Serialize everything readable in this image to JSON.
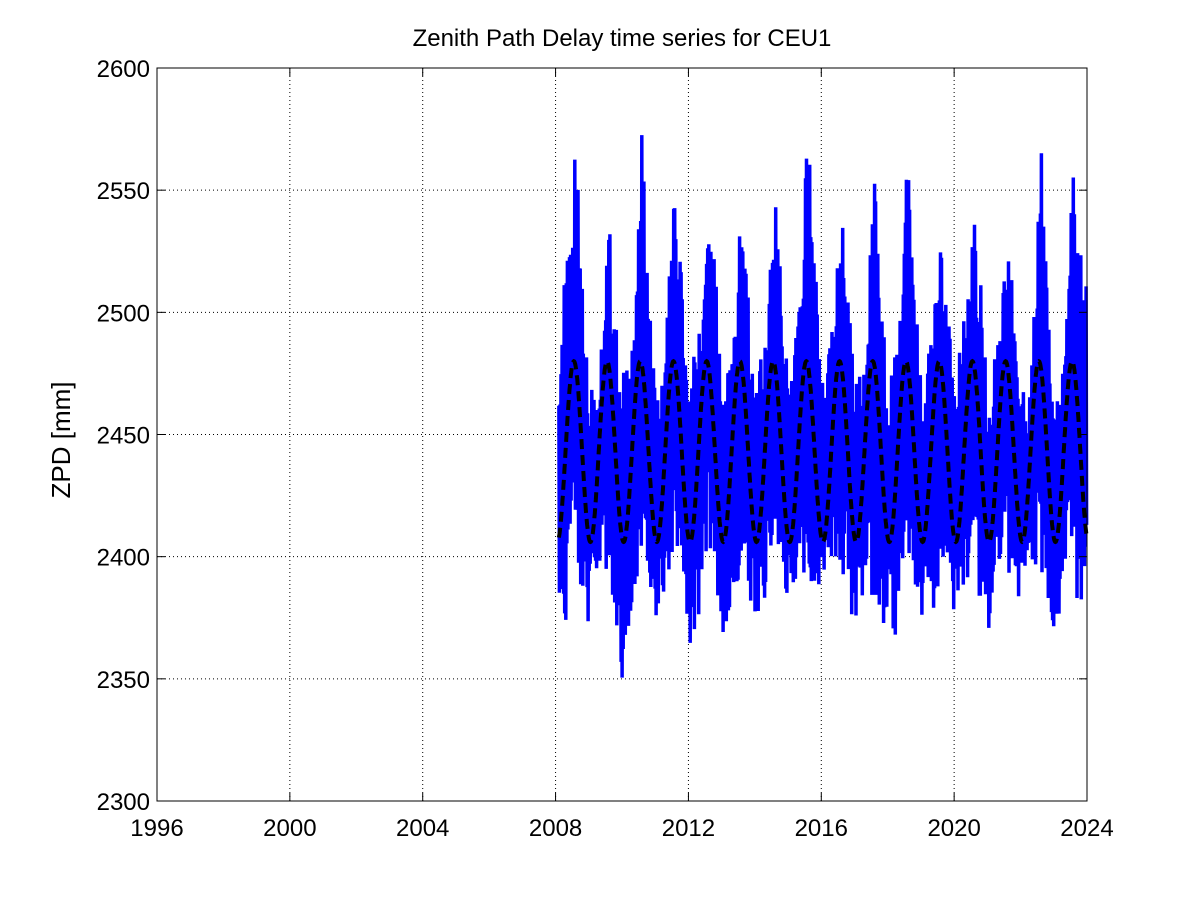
{
  "chart_data": {
    "type": "line",
    "title": "Zenith Path Delay time series for CEU1",
    "xlabel": "",
    "ylabel": "ZPD [mm]",
    "xlim": [
      1996,
      2024
    ],
    "ylim": [
      2300,
      2600
    ],
    "xticks": [
      "1996",
      "2000",
      "2004",
      "2008",
      "2012",
      "2016",
      "2020",
      "2024"
    ],
    "yticks": [
      "2300",
      "2350",
      "2400",
      "2450",
      "2500",
      "2550",
      "2600"
    ],
    "grid": true,
    "series": [
      {
        "kind": "observed",
        "style": "solid",
        "color": "#0000ff",
        "x": [
          2008.0,
          2008.2,
          2008.4,
          2008.6,
          2008.8,
          2009.0,
          2009.2,
          2009.4,
          2009.6,
          2009.8,
          2010.0,
          2010.2,
          2010.4,
          2010.6,
          2010.8,
          2011.0,
          2011.2,
          2011.4,
          2011.6,
          2011.8,
          2012.0,
          2012.2,
          2012.4,
          2012.6,
          2012.8,
          2013.0,
          2013.2,
          2013.4,
          2013.6,
          2013.8,
          2014.0,
          2014.2,
          2014.4,
          2014.6,
          2014.8,
          2015.0,
          2015.2,
          2015.4,
          2015.6,
          2015.8,
          2016.0,
          2016.2,
          2016.4,
          2016.6,
          2016.8,
          2017.0,
          2017.2,
          2017.4,
          2017.6,
          2017.8,
          2018.0,
          2018.2,
          2018.4,
          2018.6,
          2018.8,
          2019.0,
          2019.2,
          2019.4,
          2019.6,
          2019.8,
          2020.0,
          2020.2,
          2020.4,
          2020.6,
          2020.8,
          2021.0,
          2021.2,
          2021.4,
          2021.6,
          2021.8,
          2022.0,
          2022.2,
          2022.4,
          2022.6,
          2022.8,
          2023.0,
          2023.2,
          2023.4,
          2023.6,
          2023.8,
          2024.0
        ],
        "y_min": [
          2420,
          2355,
          2390,
          2405,
          2380,
          2368,
          2375,
          2395,
          2390,
          2375,
          2350,
          2365,
          2385,
          2400,
          2385,
          2370,
          2375,
          2390,
          2395,
          2385,
          2360,
          2370,
          2380,
          2400,
          2390,
          2365,
          2375,
          2385,
          2395,
          2380,
          2370,
          2380,
          2385,
          2405,
          2395,
          2375,
          2390,
          2395,
          2385,
          2380,
          2390,
          2400,
          2395,
          2395,
          2385,
          2370,
          2380,
          2390,
          2380,
          2375,
          2360,
          2365,
          2385,
          2400,
          2390,
          2370,
          2385,
          2375,
          2395,
          2385,
          2375,
          2380,
          2390,
          2395,
          2380,
          2365,
          2385,
          2390,
          2395,
          2380,
          2385,
          2390,
          2380,
          2390,
          2385,
          2365,
          2380,
          2395,
          2385,
          2380,
          2375
        ],
        "y_max": [
          2490,
          2505,
          2530,
          2567,
          2525,
          2470,
          2480,
          2495,
          2541,
          2510,
          2475,
          2480,
          2500,
          2577,
          2515,
          2465,
          2470,
          2510,
          2552,
          2520,
          2470,
          2485,
          2500,
          2565,
          2520,
          2470,
          2480,
          2495,
          2556,
          2510,
          2465,
          2485,
          2510,
          2555,
          2515,
          2470,
          2490,
          2520,
          2583,
          2530,
          2470,
          2480,
          2505,
          2560,
          2520,
          2470,
          2475,
          2505,
          2563,
          2520,
          2470,
          2480,
          2510,
          2568,
          2520,
          2470,
          2480,
          2500,
          2533,
          2505,
          2470,
          2490,
          2505,
          2570,
          2515,
          2465,
          2480,
          2500,
          2535,
          2515,
          2470,
          2470,
          2500,
          2575,
          2510,
          2470,
          2470,
          2500,
          2575,
          2530,
          2508
        ]
      },
      {
        "kind": "model",
        "style": "dashed",
        "color": "#000000",
        "x_start": 2008.1,
        "x_end": 2024.0,
        "period_years": 1,
        "mean": 2443,
        "amplitude": 37,
        "peak_phase": 0.55
      }
    ]
  }
}
